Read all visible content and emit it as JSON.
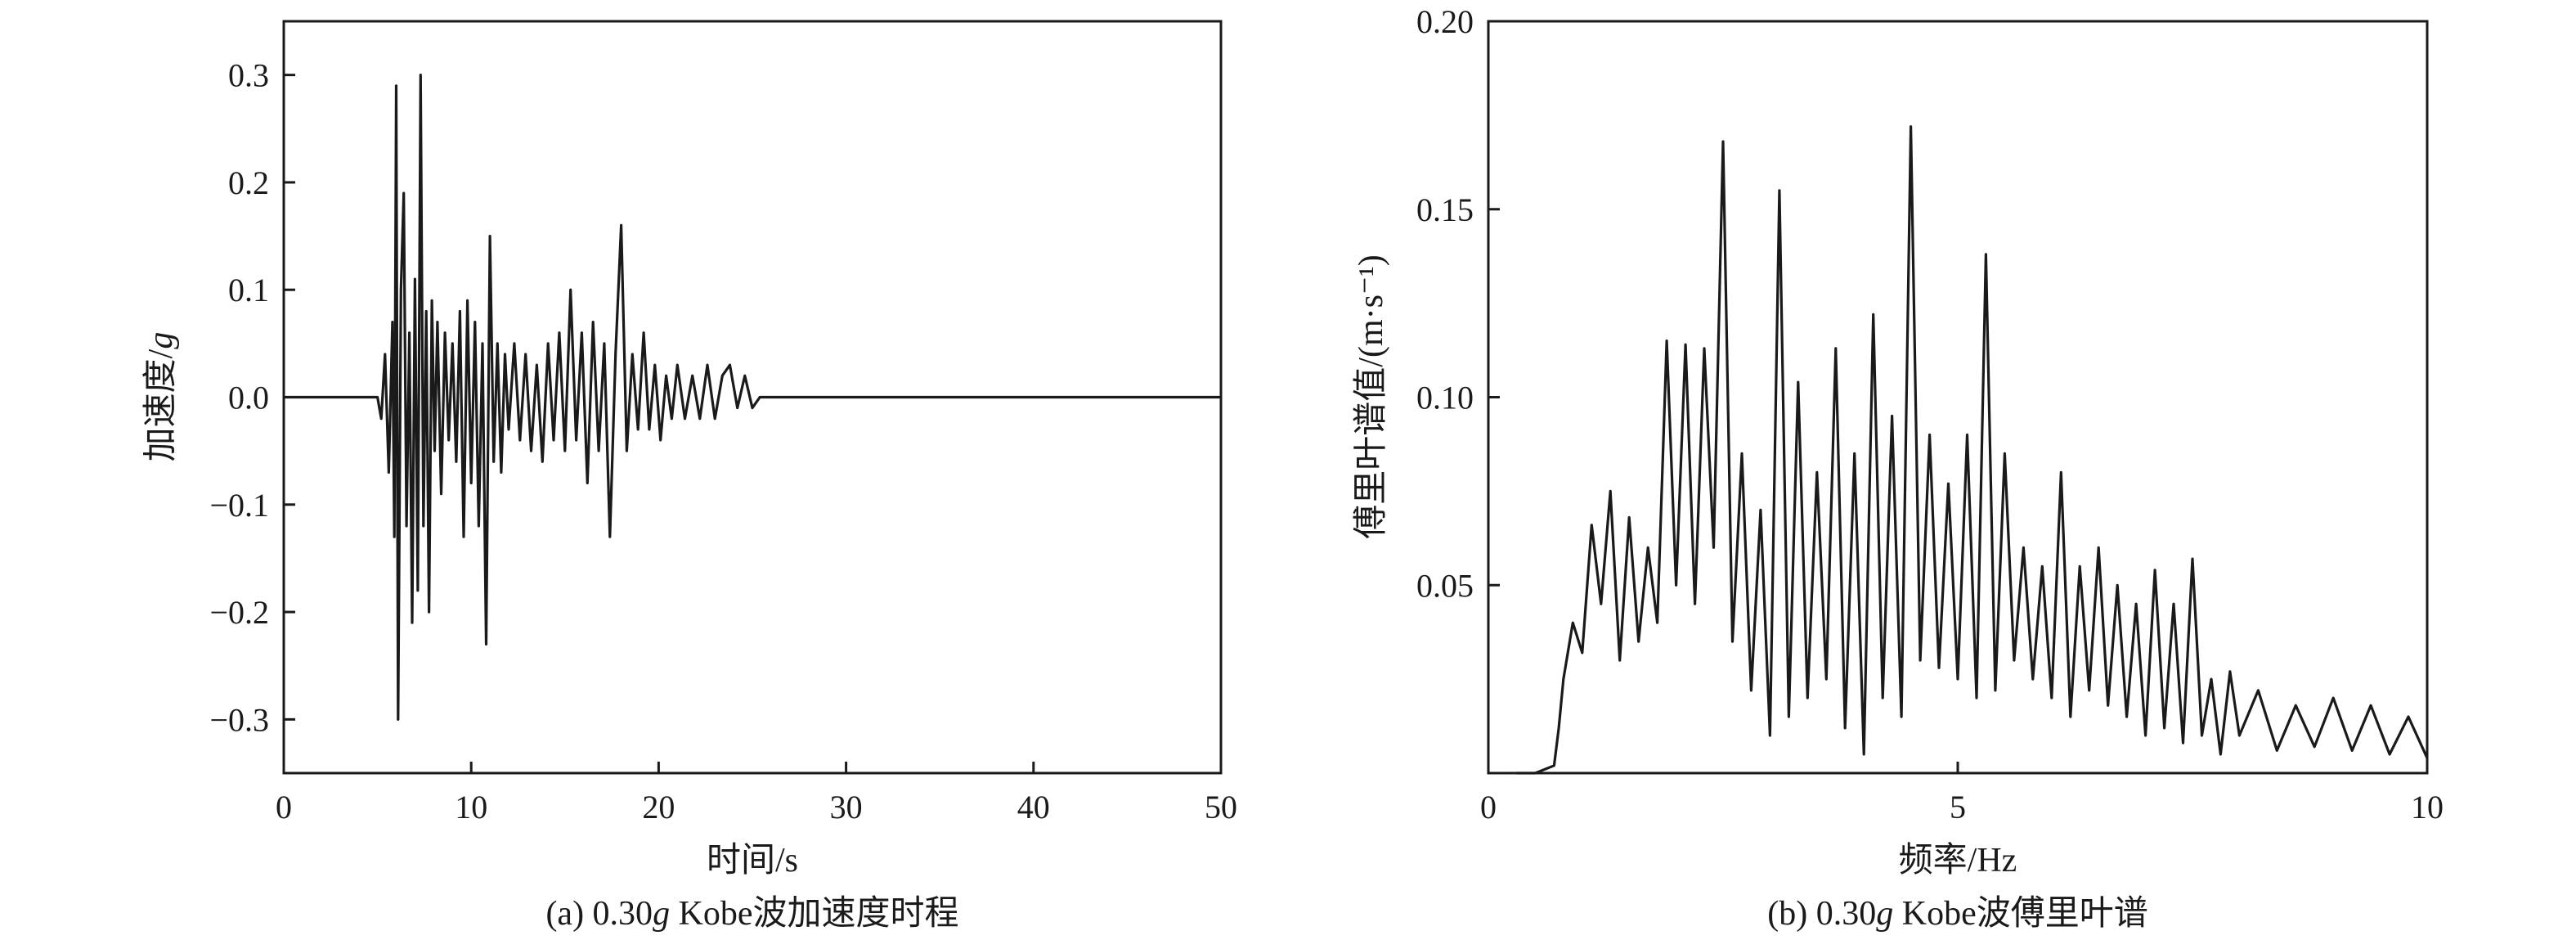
{
  "chart_data": [
    {
      "type": "line",
      "xlabel": "时间/s",
      "ylabel_parts": [
        "加速度/",
        "g"
      ],
      "caption_parts": [
        "(a) 0.30",
        "g",
        " Kobe波加速度时程"
      ],
      "xlim": [
        0,
        50
      ],
      "ylim": [
        -0.35,
        0.35
      ],
      "xticks": [
        0,
        10,
        20,
        30,
        40,
        50
      ],
      "yticks": [
        -0.3,
        -0.2,
        -0.1,
        0.0,
        0.1,
        0.2,
        0.3
      ],
      "xtick_labels": [
        "0",
        "10",
        "20",
        "30",
        "40",
        "50"
      ],
      "ytick_labels": [
        "−0.3",
        "−0.2",
        "−0.1",
        "0.0",
        "0.1",
        "0.2",
        "0.3"
      ],
      "grid": false,
      "series": [
        {
          "x": [
            0,
            5.0,
            5.2,
            5.4,
            5.6,
            5.8,
            5.9,
            6.0,
            6.1,
            6.25,
            6.4,
            6.55,
            6.7,
            6.85,
            7.0,
            7.15,
            7.3,
            7.45,
            7.6,
            7.75,
            7.9,
            8.05,
            8.2,
            8.4,
            8.6,
            8.8,
            9.0,
            9.2,
            9.4,
            9.6,
            9.8,
            10.0,
            10.2,
            10.4,
            10.6,
            10.8,
            11.0,
            11.2,
            11.4,
            11.6,
            11.8,
            12.0,
            12.3,
            12.6,
            12.9,
            13.2,
            13.5,
            13.8,
            14.1,
            14.4,
            14.7,
            15.0,
            15.3,
            15.6,
            15.9,
            16.2,
            16.5,
            16.8,
            17.1,
            17.4,
            17.7,
            18.0,
            18.3,
            18.6,
            18.9,
            19.2,
            19.5,
            19.8,
            20.1,
            20.4,
            20.7,
            21.0,
            21.4,
            21.8,
            22.2,
            22.6,
            23.0,
            23.4,
            23.8,
            24.2,
            24.6,
            25.0,
            25.4,
            25.8,
            26.2,
            30,
            40,
            50
          ],
          "y": [
            0.0,
            0.0,
            -0.02,
            0.04,
            -0.07,
            0.07,
            -0.13,
            0.29,
            -0.3,
            0.1,
            0.19,
            -0.12,
            0.06,
            -0.21,
            0.11,
            -0.18,
            0.3,
            -0.12,
            0.08,
            -0.2,
            0.09,
            -0.05,
            0.07,
            -0.09,
            0.06,
            -0.04,
            0.05,
            -0.06,
            0.08,
            -0.13,
            0.09,
            -0.08,
            0.07,
            -0.12,
            0.05,
            -0.23,
            0.15,
            -0.06,
            0.05,
            -0.07,
            0.04,
            -0.03,
            0.05,
            -0.04,
            0.04,
            -0.05,
            0.03,
            -0.06,
            0.05,
            -0.04,
            0.06,
            -0.05,
            0.1,
            -0.04,
            0.06,
            -0.08,
            0.07,
            -0.05,
            0.05,
            -0.13,
            0.04,
            0.16,
            -0.05,
            0.04,
            -0.03,
            0.06,
            -0.03,
            0.03,
            -0.04,
            0.02,
            -0.02,
            0.03,
            -0.02,
            0.02,
            -0.02,
            0.03,
            -0.02,
            0.02,
            0.03,
            -0.01,
            0.02,
            -0.01,
            0.0,
            0.0,
            0.0,
            0.0,
            0.0,
            0.0
          ]
        }
      ]
    },
    {
      "type": "line",
      "xlabel": "频率/Hz",
      "ylabel": "傅里叶谱值/(m·s⁻¹)",
      "caption_parts": [
        "(b) 0.30",
        "g",
        " Kobe波傅里叶谱"
      ],
      "xlim": [
        0,
        10
      ],
      "ylim": [
        0,
        0.2
      ],
      "xticks": [
        0,
        5,
        10
      ],
      "yticks": [
        0.05,
        0.1,
        0.15,
        0.2
      ],
      "xtick_labels": [
        "0",
        "5",
        "10"
      ],
      "ytick_labels": [
        "0.05",
        "0.10",
        "0.15",
        "0.20"
      ],
      "grid": false,
      "series": [
        {
          "x": [
            0.3,
            0.5,
            0.7,
            0.75,
            0.8,
            0.9,
            1.0,
            1.1,
            1.2,
            1.3,
            1.4,
            1.5,
            1.6,
            1.7,
            1.8,
            1.9,
            2.0,
            2.1,
            2.2,
            2.3,
            2.4,
            2.5,
            2.6,
            2.7,
            2.8,
            2.9,
            3.0,
            3.1,
            3.2,
            3.3,
            3.4,
            3.5,
            3.6,
            3.7,
            3.8,
            3.9,
            4.0,
            4.1,
            4.2,
            4.3,
            4.4,
            4.5,
            4.6,
            4.7,
            4.8,
            4.9,
            5.0,
            5.1,
            5.2,
            5.3,
            5.4,
            5.5,
            5.6,
            5.7,
            5.8,
            5.9,
            6.0,
            6.1,
            6.2,
            6.3,
            6.4,
            6.5,
            6.6,
            6.7,
            6.8,
            6.9,
            7.0,
            7.1,
            7.2,
            7.3,
            7.4,
            7.5,
            7.6,
            7.7,
            7.8,
            7.9,
            8.0,
            8.2,
            8.4,
            8.6,
            8.8,
            9.0,
            9.2,
            9.4,
            9.6,
            9.8,
            10.0
          ],
          "y": [
            0.0,
            0.0,
            0.002,
            0.012,
            0.025,
            0.04,
            0.032,
            0.066,
            0.045,
            0.075,
            0.03,
            0.068,
            0.035,
            0.06,
            0.04,
            0.115,
            0.05,
            0.114,
            0.045,
            0.113,
            0.06,
            0.168,
            0.035,
            0.085,
            0.022,
            0.07,
            0.01,
            0.155,
            0.015,
            0.104,
            0.02,
            0.08,
            0.025,
            0.113,
            0.012,
            0.085,
            0.005,
            0.122,
            0.02,
            0.095,
            0.015,
            0.172,
            0.03,
            0.09,
            0.028,
            0.077,
            0.025,
            0.09,
            0.02,
            0.138,
            0.022,
            0.085,
            0.03,
            0.06,
            0.025,
            0.055,
            0.02,
            0.08,
            0.015,
            0.055,
            0.022,
            0.06,
            0.018,
            0.05,
            0.015,
            0.045,
            0.01,
            0.054,
            0.012,
            0.045,
            0.008,
            0.057,
            0.01,
            0.025,
            0.005,
            0.027,
            0.01,
            0.022,
            0.006,
            0.018,
            0.007,
            0.02,
            0.006,
            0.018,
            0.005,
            0.015,
            0.004
          ]
        }
      ]
    }
  ]
}
